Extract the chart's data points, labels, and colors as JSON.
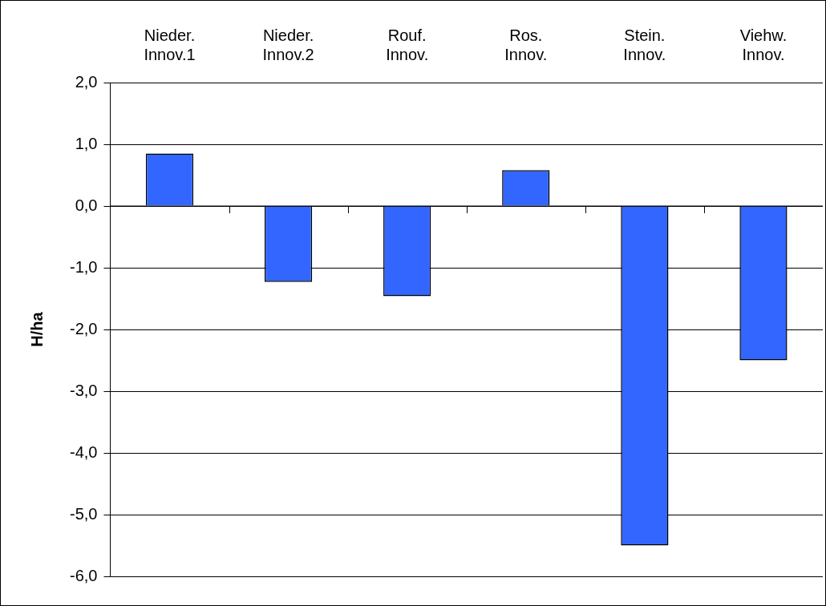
{
  "chart_data": {
    "type": "bar",
    "ylabel": "H/ha",
    "categories": [
      "Nieder.\nInnov.1",
      "Nieder.\nInnov.2",
      "Rouf.\nInnov.",
      "Ros.\nInnov.",
      "Stein.\nInnov.",
      "Viehw.\nInnov."
    ],
    "values": [
      0.85,
      -1.23,
      -1.46,
      0.58,
      -5.5,
      -2.5
    ],
    "color": "#3366ff",
    "ylim": [
      -6,
      2
    ],
    "yticks": [
      {
        "value": 2,
        "label": "2,0"
      },
      {
        "value": 1,
        "label": "1,0"
      },
      {
        "value": 0,
        "label": "0,0"
      },
      {
        "value": -1,
        "label": "-1,0"
      },
      {
        "value": -2,
        "label": "-2,0"
      },
      {
        "value": -3,
        "label": "-3,0"
      },
      {
        "value": -4,
        "label": "-4,0"
      },
      {
        "value": -5,
        "label": "-5,0"
      },
      {
        "value": -6,
        "label": "-6,0"
      }
    ],
    "grid": "y",
    "legend": false
  }
}
